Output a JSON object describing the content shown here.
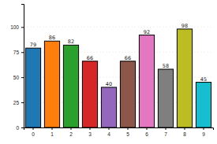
{
  "chart_data": {
    "type": "bar",
    "categories": [
      "0",
      "1",
      "2",
      "3",
      "4",
      "5",
      "6",
      "7",
      "8",
      "9"
    ],
    "values": [
      79,
      86,
      82,
      66,
      40,
      66,
      92,
      58,
      98,
      45
    ],
    "colors": [
      "#1f77b4",
      "#ff7f0e",
      "#2ca02c",
      "#d62728",
      "#9467bd",
      "#8c564b",
      "#e377c2",
      "#7f7f7f",
      "#bcbd22",
      "#17becf"
    ],
    "ylim": [
      0,
      123
    ],
    "yticks": [
      0,
      25,
      50,
      75,
      100
    ],
    "grid": true,
    "data_labels": true
  }
}
